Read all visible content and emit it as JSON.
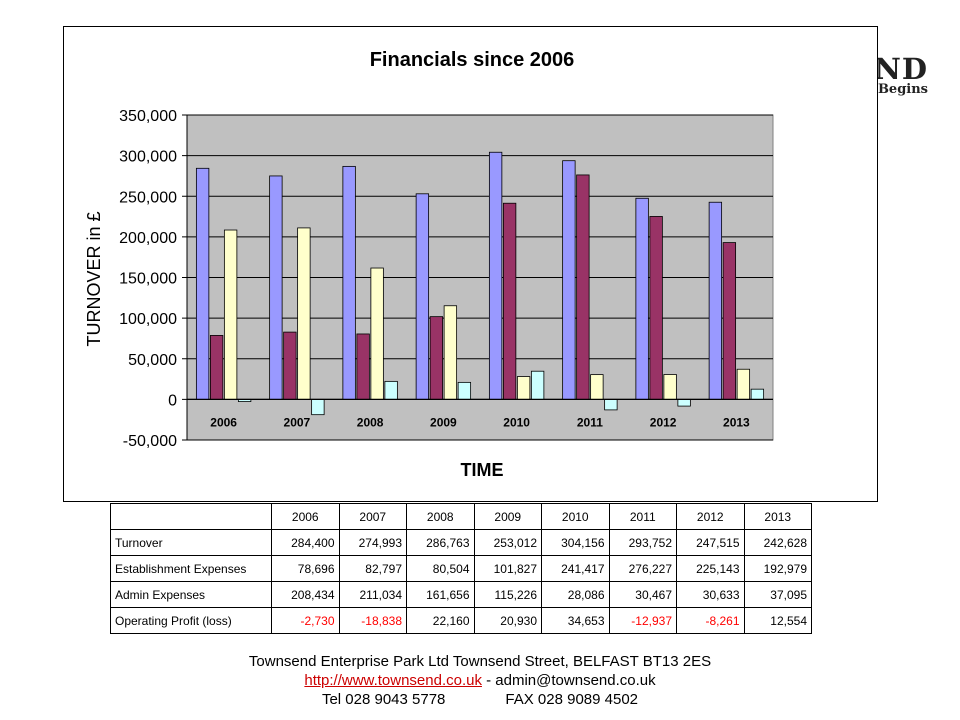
{
  "logo": {
    "line1": "ND",
    "line2": "s Begins"
  },
  "chart_data": {
    "type": "bar",
    "title": "Financials since 2006",
    "xlabel": "TIME",
    "ylabel": "TURNOVER in £",
    "ylim": [
      -50000,
      350000
    ],
    "yticks": [
      -50000,
      0,
      50000,
      100000,
      150000,
      200000,
      250000,
      300000,
      350000
    ],
    "ytick_labels": [
      "-50,000",
      "0",
      "50,000",
      "100,000",
      "150,000",
      "200,000",
      "250,000",
      "300,000",
      "350,000"
    ],
    "grid": true,
    "categories": [
      "2006",
      "2007",
      "2008",
      "2009",
      "2010",
      "2011",
      "2012",
      "2013"
    ],
    "series": [
      {
        "values": [
          284400,
          274993,
          286763,
          253012,
          304156,
          293752,
          247515,
          242628
        ],
        "color": "#9999ff"
      },
      {
        "values": [
          78696,
          82797,
          80504,
          101827,
          241417,
          276227,
          225143,
          192979
        ],
        "color": "#993366"
      },
      {
        "values": [
          208434,
          211034,
          161656,
          115226,
          28086,
          30467,
          30633,
          37095
        ],
        "color": "#ffffcc"
      },
      {
        "values": [
          -2730,
          -18838,
          22160,
          20930,
          34653,
          -12937,
          -8261,
          12554
        ],
        "color": "#ccffff"
      }
    ],
    "plot_background": "#c0c0c0"
  },
  "table": {
    "headers": [
      "",
      "2006",
      "2007",
      "2008",
      "2009",
      "2010",
      "2011",
      "2012",
      "2013"
    ],
    "rows": [
      {
        "label": "Turnover",
        "cells": [
          "284,400",
          "274,993",
          "286,763",
          "253,012",
          "304,156",
          "293,752",
          "247,515",
          "242,628"
        ]
      },
      {
        "label": "Establishment Expenses",
        "cells": [
          "78,696",
          "82,797",
          "80,504",
          "101,827",
          "241,417",
          "276,227",
          "225,143",
          "192,979"
        ]
      },
      {
        "label": "Admin Expenses",
        "cells": [
          "208,434",
          "211,034",
          "161,656",
          "115,226",
          "28,086",
          "30,467",
          "30,633",
          "37,095"
        ]
      },
      {
        "label": "Operating Profit (loss)",
        "cells": [
          "-2,730",
          "-18,838",
          "22,160",
          "20,930",
          "34,653",
          "-12,937",
          "-8,261",
          "12,554"
        ]
      }
    ]
  },
  "footer": {
    "line1": "Townsend Enterprise Park Ltd Townsend Street, BELFAST BT13 2ES",
    "link": "http://www.townsend.co.uk",
    "email": " - admin@townsend.co.uk",
    "tel": "Tel 028 9043 5778",
    "fax": "FAX 028 9089 4502"
  },
  "colors": {
    "negative": "#ff0000",
    "link": "#cc0000"
  }
}
